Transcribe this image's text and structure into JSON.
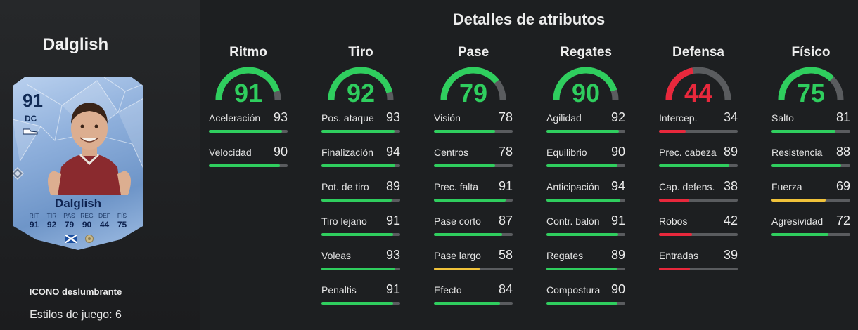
{
  "player": {
    "name": "Dalglish",
    "card": {
      "rating": "91",
      "position": "DC",
      "name": "Dalglish",
      "stats": [
        {
          "label": "RIT",
          "value": "91"
        },
        {
          "label": "TIR",
          "value": "92"
        },
        {
          "label": "PAS",
          "value": "79"
        },
        {
          "label": "REG",
          "value": "90"
        },
        {
          "label": "DEF",
          "value": "44"
        },
        {
          "label": "FÍS",
          "value": "75"
        }
      ]
    },
    "version": "ICONO deslumbrante",
    "playstyles": "Estilos de juego: 6"
  },
  "title": "Detalles de atributos",
  "colors": {
    "green": "#2fce5e",
    "red": "#e8283c",
    "yellow": "#f0c23a",
    "track": "#5a5c5f"
  },
  "categories": [
    {
      "name": "Ritmo",
      "value": 91,
      "value_text": "91",
      "color": "#2fce5e",
      "stats": [
        {
          "name": "Aceleración",
          "value": 93,
          "value_text": "93"
        },
        {
          "name": "Velocidad",
          "value": 90,
          "value_text": "90"
        }
      ]
    },
    {
      "name": "Tiro",
      "value": 92,
      "value_text": "92",
      "color": "#2fce5e",
      "stats": [
        {
          "name": "Pos. ataque",
          "value": 93,
          "value_text": "93"
        },
        {
          "name": "Finalización",
          "value": 94,
          "value_text": "94"
        },
        {
          "name": "Pot. de tiro",
          "value": 89,
          "value_text": "89"
        },
        {
          "name": "Tiro lejano",
          "value": 91,
          "value_text": "91"
        },
        {
          "name": "Voleas",
          "value": 93,
          "value_text": "93"
        },
        {
          "name": "Penaltis",
          "value": 91,
          "value_text": "91"
        }
      ]
    },
    {
      "name": "Pase",
      "value": 79,
      "value_text": "79",
      "color": "#2fce5e",
      "stats": [
        {
          "name": "Visión",
          "value": 78,
          "value_text": "78"
        },
        {
          "name": "Centros",
          "value": 78,
          "value_text": "78"
        },
        {
          "name": "Prec. falta",
          "value": 91,
          "value_text": "91"
        },
        {
          "name": "Pase corto",
          "value": 87,
          "value_text": "87"
        },
        {
          "name": "Pase largo",
          "value": 58,
          "value_text": "58"
        },
        {
          "name": "Efecto",
          "value": 84,
          "value_text": "84"
        }
      ]
    },
    {
      "name": "Regates",
      "value": 90,
      "value_text": "90",
      "color": "#2fce5e",
      "stats": [
        {
          "name": "Agilidad",
          "value": 92,
          "value_text": "92"
        },
        {
          "name": "Equilibrio",
          "value": 90,
          "value_text": "90"
        },
        {
          "name": "Anticipación",
          "value": 94,
          "value_text": "94"
        },
        {
          "name": "Contr. balón",
          "value": 91,
          "value_text": "91"
        },
        {
          "name": "Regates",
          "value": 89,
          "value_text": "89"
        },
        {
          "name": "Compostura",
          "value": 90,
          "value_text": "90"
        }
      ]
    },
    {
      "name": "Defensa",
      "value": 44,
      "value_text": "44",
      "color": "#e8283c",
      "stats": [
        {
          "name": "Intercep.",
          "value": 34,
          "value_text": "34"
        },
        {
          "name": "Prec. cabeza",
          "value": 89,
          "value_text": "89"
        },
        {
          "name": "Cap. defens.",
          "value": 38,
          "value_text": "38"
        },
        {
          "name": "Robos",
          "value": 42,
          "value_text": "42"
        },
        {
          "name": "Entradas",
          "value": 39,
          "value_text": "39"
        }
      ]
    },
    {
      "name": "Físico",
      "value": 75,
      "value_text": "75",
      "color": "#2fce5e",
      "stats": [
        {
          "name": "Salto",
          "value": 81,
          "value_text": "81"
        },
        {
          "name": "Resistencia",
          "value": 88,
          "value_text": "88"
        },
        {
          "name": "Fuerza",
          "value": 69,
          "value_text": "69"
        },
        {
          "name": "Agresividad",
          "value": 72,
          "value_text": "72"
        }
      ]
    }
  ]
}
